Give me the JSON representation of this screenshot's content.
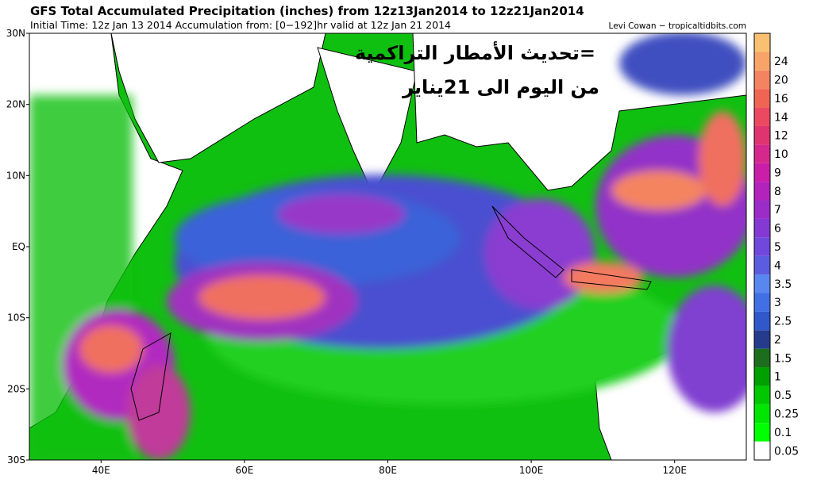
{
  "header": {
    "title": "GFS Total Accumulated Precipitation (inches) from 12z13Jan2014 to 12z21Jan2014",
    "subtitle": "Initial Time: 12z Jan 13 2014 Accumulation from: [0−192]hr valid at 12z Jan 21 2014",
    "credit": "Levi Cowan − tropicaltidbits.com"
  },
  "overlay": {
    "line1": "=تحديث الأمطار التراكمية",
    "line2": "من اليوم الى 21يناير",
    "color": "#f47a20"
  },
  "map": {
    "lat_labels": [
      "30N",
      "20N",
      "10N",
      "EQ",
      "10S",
      "20S",
      "30S"
    ],
    "lon_labels": [
      "40E",
      "60E",
      "80E",
      "100E",
      "120E"
    ]
  },
  "colorbar": {
    "labels": [
      "0.05",
      "0.1",
      "0.25",
      "0.5",
      "1",
      "1.5",
      "2",
      "2.5",
      "3",
      "3.5",
      "4",
      "5",
      "6",
      "7",
      "8",
      "9",
      "10",
      "12",
      "14",
      "16",
      "20",
      "24"
    ],
    "colors": [
      "#ffffff",
      "#00ff00",
      "#00e600",
      "#00c800",
      "#00a000",
      "#1c6e1c",
      "#253c8c",
      "#3058c8",
      "#4070e4",
      "#5a86f0",
      "#5c5ce0",
      "#7048dc",
      "#8438d4",
      "#9c2cc8",
      "#b422bc",
      "#c81ea8",
      "#d4288c",
      "#e03470",
      "#ec4860",
      "#f06454",
      "#f48460",
      "#f8a468",
      "#f8c070"
    ]
  }
}
